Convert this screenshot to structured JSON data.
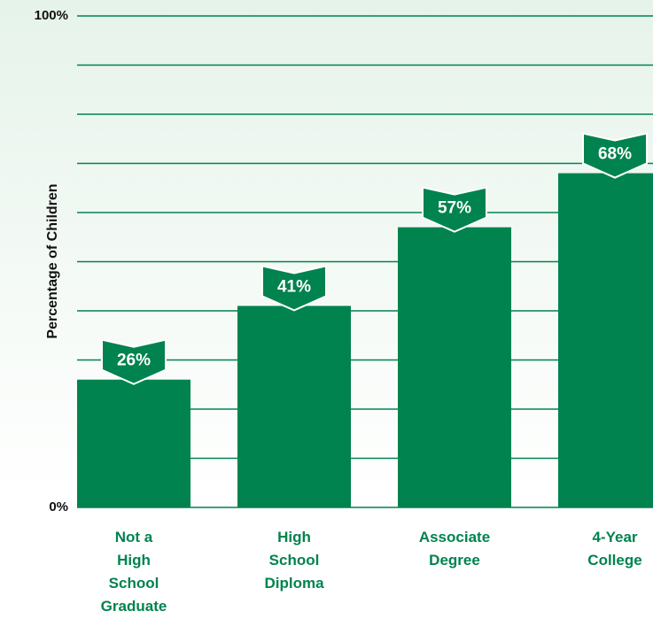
{
  "chart_data": {
    "type": "bar",
    "y_label": "Percentage of Children",
    "categories": [
      "Not a High School Graduate",
      "High School Diploma",
      "Associate Degree",
      "4-Year College"
    ],
    "values": [
      26,
      41,
      57,
      68
    ],
    "value_labels": [
      "26%",
      "41%",
      "57%",
      "68%"
    ],
    "color": "#00834e",
    "ylim": [
      0,
      100
    ],
    "yticks": [
      {
        "value": 0,
        "label": "0%"
      },
      {
        "value": 10,
        "label": null
      },
      {
        "value": 20,
        "label": null
      },
      {
        "value": 30,
        "label": null
      },
      {
        "value": 40,
        "label": null
      },
      {
        "value": 50,
        "label": null
      },
      {
        "value": 60,
        "label": null
      },
      {
        "value": 70,
        "label": null
      },
      {
        "value": 80,
        "label": null
      },
      {
        "value": 90,
        "label": null
      },
      {
        "value": 100,
        "label": "100%"
      }
    ],
    "grid": true
  }
}
